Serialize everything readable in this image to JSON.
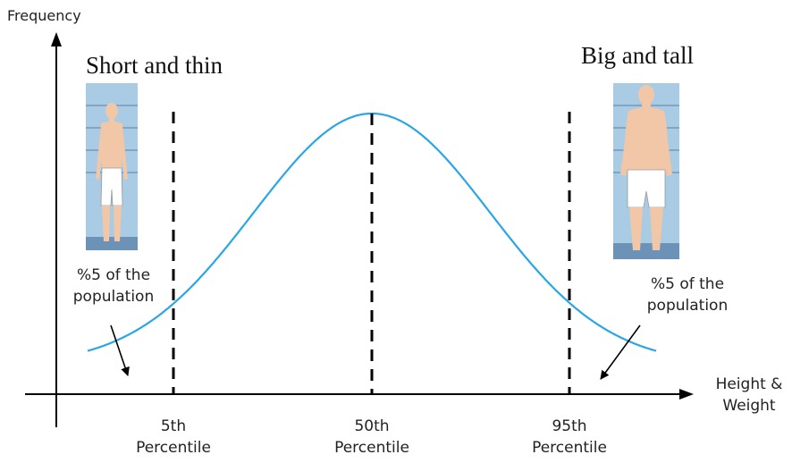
{
  "y_axis_label": "Frequency",
  "x_axis_label_line1": "Height &",
  "x_axis_label_line2": "Weight",
  "left_group_title": "Short and thin",
  "right_group_title": "Big and tall",
  "left_note_line1": "%5 of the",
  "left_note_line2": "population",
  "right_note_line1": "%5 of the",
  "right_note_line2": "population",
  "markers": [
    {
      "rank": "5th",
      "word": "Percentile"
    },
    {
      "rank": "50th",
      "word": "Percentile"
    },
    {
      "rank": "95th",
      "word": "Percentile"
    }
  ],
  "colors": {
    "curve": "#2aa6e8",
    "axis": "#000000",
    "dashed": "#000000",
    "figure_bg": "#a9cbe4",
    "floor": "#6c93b7",
    "skin": "#f1c7a8",
    "shorts": "#ffffff"
  }
}
